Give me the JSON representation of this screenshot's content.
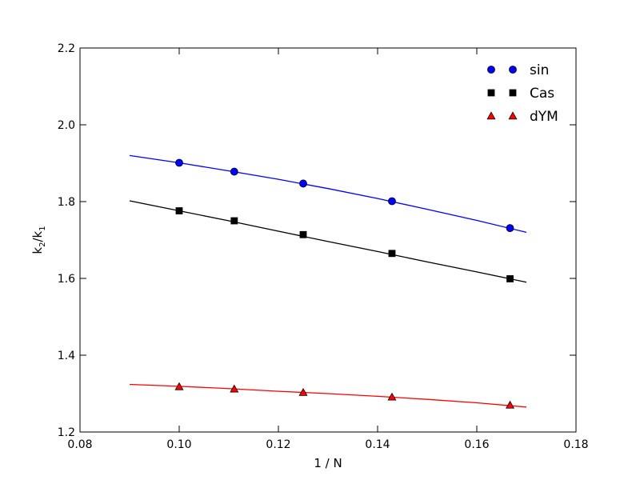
{
  "chart_data": {
    "type": "line",
    "xlabel": "1 / N",
    "ylabel_main": "k",
    "ylabel_sub1": "2",
    "ylabel_sep": "/k",
    "ylabel_sub2": "1",
    "xlim": [
      0.08,
      0.18
    ],
    "ylim": [
      1.2,
      2.2
    ],
    "x_ticks": [
      0.08,
      0.1,
      0.12,
      0.14,
      0.16,
      0.18
    ],
    "x_tick_labels": [
      "0.08",
      "0.10",
      "0.12",
      "0.14",
      "0.16",
      "0.18"
    ],
    "y_ticks": [
      1.2,
      1.4,
      1.6,
      1.8,
      2.0,
      2.2
    ],
    "y_tick_labels": [
      "1.2",
      "1.4",
      "1.6",
      "1.8",
      "2.0",
      "2.2"
    ],
    "grid": false,
    "legend_position": "top-right",
    "series": [
      {
        "name": "sin",
        "color": "#0000ff",
        "marker": "circle",
        "points": [
          {
            "x": 0.1,
            "y": 1.901
          },
          {
            "x": 0.1111,
            "y": 1.878
          },
          {
            "x": 0.125,
            "y": 1.847
          },
          {
            "x": 0.1429,
            "y": 1.801
          },
          {
            "x": 0.1667,
            "y": 1.731
          }
        ],
        "fit": [
          {
            "x": 0.09,
            "y": 1.92
          },
          {
            "x": 0.1,
            "y": 1.901
          },
          {
            "x": 0.11,
            "y": 1.88
          },
          {
            "x": 0.12,
            "y": 1.858
          },
          {
            "x": 0.13,
            "y": 1.834
          },
          {
            "x": 0.14,
            "y": 1.808
          },
          {
            "x": 0.15,
            "y": 1.78
          },
          {
            "x": 0.16,
            "y": 1.751
          },
          {
            "x": 0.17,
            "y": 1.72
          }
        ]
      },
      {
        "name": "Cas",
        "color": "#000000",
        "marker": "square",
        "points": [
          {
            "x": 0.1,
            "y": 1.776
          },
          {
            "x": 0.1111,
            "y": 1.75
          },
          {
            "x": 0.125,
            "y": 1.714
          },
          {
            "x": 0.1429,
            "y": 1.665
          },
          {
            "x": 0.1667,
            "y": 1.599
          }
        ],
        "fit": [
          {
            "x": 0.09,
            "y": 1.802
          },
          {
            "x": 0.1,
            "y": 1.776
          },
          {
            "x": 0.11,
            "y": 1.75
          },
          {
            "x": 0.12,
            "y": 1.723
          },
          {
            "x": 0.13,
            "y": 1.696
          },
          {
            "x": 0.14,
            "y": 1.67
          },
          {
            "x": 0.15,
            "y": 1.643
          },
          {
            "x": 0.16,
            "y": 1.617
          },
          {
            "x": 0.17,
            "y": 1.59
          }
        ]
      },
      {
        "name": "dYM",
        "color": "#ff0000",
        "marker": "triangle",
        "points": [
          {
            "x": 0.1,
            "y": 1.318
          },
          {
            "x": 0.1111,
            "y": 1.312
          },
          {
            "x": 0.125,
            "y": 1.303
          },
          {
            "x": 0.1429,
            "y": 1.291
          },
          {
            "x": 0.1667,
            "y": 1.27
          }
        ],
        "fit": [
          {
            "x": 0.09,
            "y": 1.324
          },
          {
            "x": 0.1,
            "y": 1.319
          },
          {
            "x": 0.11,
            "y": 1.313
          },
          {
            "x": 0.12,
            "y": 1.306
          },
          {
            "x": 0.13,
            "y": 1.3
          },
          {
            "x": 0.14,
            "y": 1.293
          },
          {
            "x": 0.15,
            "y": 1.285
          },
          {
            "x": 0.16,
            "y": 1.276
          },
          {
            "x": 0.17,
            "y": 1.265
          }
        ]
      }
    ]
  }
}
